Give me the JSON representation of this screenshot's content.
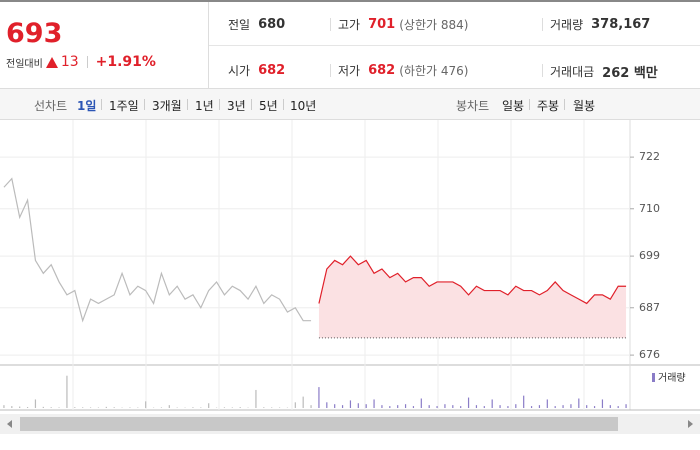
{
  "quote": {
    "price": "693",
    "change_label": "전일대비",
    "change": "13",
    "change_rate": "+1.91%"
  },
  "stats": [
    {
      "label": "전일",
      "value": "680"
    },
    {
      "label": "고가",
      "value": "701",
      "note": "(상한가 884)"
    },
    {
      "label": "거래량",
      "value": "378,167"
    },
    {
      "label": "시가",
      "value": "682"
    },
    {
      "label": "저가",
      "value": "682",
      "note": "(하한가 476)"
    },
    {
      "label": "거래대금",
      "value": "262 백만"
    }
  ],
  "tabs": {
    "line_label": "선차트",
    "line": [
      "1일",
      "1주일",
      "3개월",
      "1년",
      "3년",
      "5년",
      "10년"
    ],
    "candle_label": "봉차트",
    "candle": [
      "일봉",
      "주봉",
      "월봉"
    ]
  },
  "chart_data": {
    "type": "line",
    "ylim": [
      673.7,
      728.3
    ],
    "yticks": [
      676,
      687,
      699,
      710,
      722
    ],
    "grid": true,
    "baseline": 680,
    "series": [
      {
        "color": "#bbbbbb",
        "values": [
          715,
          717,
          708,
          712,
          698,
          695,
          697,
          693,
          690,
          691,
          684,
          689,
          688,
          689,
          690,
          695,
          690,
          692,
          691,
          688,
          695,
          690,
          692,
          689,
          690,
          687,
          691,
          693,
          690,
          692,
          691,
          689,
          692,
          688,
          690,
          689,
          686,
          687,
          684,
          684,
          null,
          null,
          null,
          null,
          null,
          null,
          null,
          null,
          null,
          null,
          null,
          null,
          null,
          null,
          null,
          null,
          null,
          null,
          null,
          null,
          null,
          null,
          null,
          null,
          null,
          null,
          null,
          null,
          null,
          null,
          null,
          null,
          null,
          null,
          null,
          null,
          null,
          null,
          null,
          null
        ]
      },
      {
        "color": "#e0202a",
        "fill": "#fbe1e3",
        "values": [
          null,
          null,
          null,
          null,
          null,
          null,
          null,
          null,
          null,
          null,
          null,
          null,
          null,
          null,
          null,
          null,
          null,
          null,
          null,
          null,
          null,
          null,
          null,
          null,
          null,
          null,
          null,
          null,
          null,
          null,
          null,
          null,
          null,
          null,
          null,
          null,
          null,
          null,
          null,
          null,
          688,
          696,
          698,
          697,
          699,
          697,
          698,
          695,
          696,
          694,
          695,
          693,
          694,
          694,
          692,
          693,
          693,
          693,
          692,
          690,
          692,
          691,
          691,
          691,
          690,
          692,
          691,
          691,
          690,
          691,
          693,
          691,
          690,
          689,
          688,
          690,
          690,
          689,
          692,
          692
        ]
      }
    ],
    "volume_label": "거래량",
    "volume_ylim": [
      0,
      4000
    ],
    "volume": [
      300,
      200,
      150,
      100,
      900,
      120,
      80,
      60,
      3400,
      90,
      70,
      60,
      50,
      120,
      80,
      40,
      60,
      50,
      700,
      40,
      60,
      300,
      50,
      40,
      80,
      60,
      500,
      40,
      70,
      60,
      90,
      40,
      1900,
      80,
      60,
      50,
      40,
      600,
      1200,
      300,
      2200,
      600,
      400,
      300,
      800,
      500,
      400,
      900,
      300,
      200,
      300,
      400,
      200,
      1000,
      300,
      200,
      400,
      300,
      200,
      1100,
      300,
      200,
      900,
      300,
      200,
      400,
      1300,
      200,
      300,
      900,
      200,
      300,
      400,
      1000,
      300,
      200,
      900,
      300,
      200,
      400
    ]
  }
}
